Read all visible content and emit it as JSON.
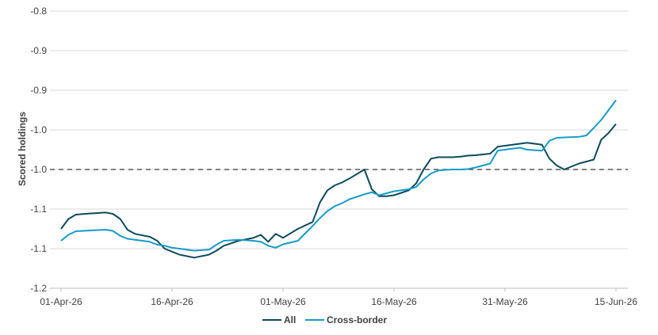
{
  "chart_data": {
    "type": "line",
    "ylabel": "Scored holdings",
    "xlabel": "",
    "y_tick_labels": [
      "-0.8",
      "-0.9",
      "-0.9",
      "-1.0",
      "-1.0",
      "-1.1",
      "-1.1",
      "-1.2"
    ],
    "ylim_tick_index": [
      0,
      7
    ],
    "x_tick_labels": [
      "01-Apr-26",
      "16-Apr-26",
      "01-May-26",
      "16-May-26",
      "31-May-26",
      "15-Jun-26"
    ],
    "grid": "horizontal",
    "legend_position": "bottom",
    "reference_line": {
      "y_tick_index": 4,
      "style": "dashed"
    },
    "series": [
      {
        "name": "All",
        "color": "#0d4a5a",
        "x_day": [
          0,
          1,
          2,
          4,
          5,
          6,
          7,
          8,
          9,
          10,
          12,
          13,
          14,
          15,
          16,
          18,
          20,
          21,
          22,
          24,
          26,
          27,
          28,
          29,
          30,
          32,
          34,
          35,
          36,
          37,
          38,
          39,
          41,
          42,
          43,
          44,
          45,
          47,
          48,
          49,
          50,
          51,
          52,
          53,
          54,
          55,
          56,
          58,
          59,
          60,
          61,
          62,
          63,
          65,
          66,
          67,
          68,
          70,
          71,
          72,
          73,
          74,
          75
        ],
        "values": [
          1.0,
          0.5,
          0.28,
          0.22,
          0.2,
          0.17,
          0.24,
          0.5,
          1.05,
          1.25,
          1.4,
          1.6,
          2.0,
          2.15,
          2.3,
          2.45,
          2.3,
          2.1,
          1.85,
          1.6,
          1.45,
          1.3,
          1.65,
          1.25,
          1.45,
          1.0,
          0.65,
          -0.35,
          -0.95,
          -1.2,
          -1.35,
          -1.55,
          -2.0,
          -1.0,
          -0.65,
          -0.65,
          -0.7,
          -0.95,
          -1.3,
          -2.0,
          -2.55,
          -2.62,
          -2.62,
          -2.62,
          -2.65,
          -2.7,
          -2.72,
          -2.8,
          -3.15,
          -3.2,
          -3.25,
          -3.3,
          -3.35,
          -3.25,
          -2.55,
          -2.2,
          -2.0,
          -2.3,
          -2.4,
          -2.5,
          -3.5,
          -3.85,
          -4.3
        ]
      },
      {
        "name": "Cross-border",
        "color": "#169bc9",
        "x_day": [
          0,
          1,
          2,
          4,
          5,
          6,
          7,
          8,
          9,
          10,
          12,
          13,
          14,
          15,
          16,
          18,
          20,
          21,
          22,
          24,
          26,
          27,
          28,
          29,
          30,
          32,
          34,
          35,
          36,
          37,
          38,
          39,
          41,
          42,
          43,
          44,
          45,
          47,
          48,
          49,
          50,
          51,
          52,
          53,
          54,
          55,
          56,
          58,
          59,
          60,
          61,
          62,
          63,
          65,
          66,
          67,
          68,
          70,
          71,
          72,
          73,
          74,
          75
        ],
        "values": [
          1.6,
          1.3,
          1.12,
          1.08,
          1.06,
          1.04,
          1.1,
          1.35,
          1.5,
          1.55,
          1.65,
          1.8,
          1.85,
          1.95,
          2.0,
          2.1,
          2.05,
          1.8,
          1.6,
          1.55,
          1.6,
          1.65,
          1.85,
          1.95,
          1.78,
          1.6,
          0.85,
          0.45,
          0.1,
          -0.15,
          -0.3,
          -0.5,
          -0.75,
          -0.85,
          -0.7,
          -0.8,
          -0.9,
          -1.0,
          -1.12,
          -1.5,
          -1.8,
          -1.95,
          -1.98,
          -2.0,
          -2.0,
          -2.02,
          -2.1,
          -2.3,
          -2.95,
          -3.0,
          -3.05,
          -3.1,
          -3.0,
          -2.95,
          -3.45,
          -3.6,
          -3.62,
          -3.65,
          -3.72,
          -4.1,
          -4.5,
          -5.0,
          -5.5
        ]
      }
    ]
  }
}
